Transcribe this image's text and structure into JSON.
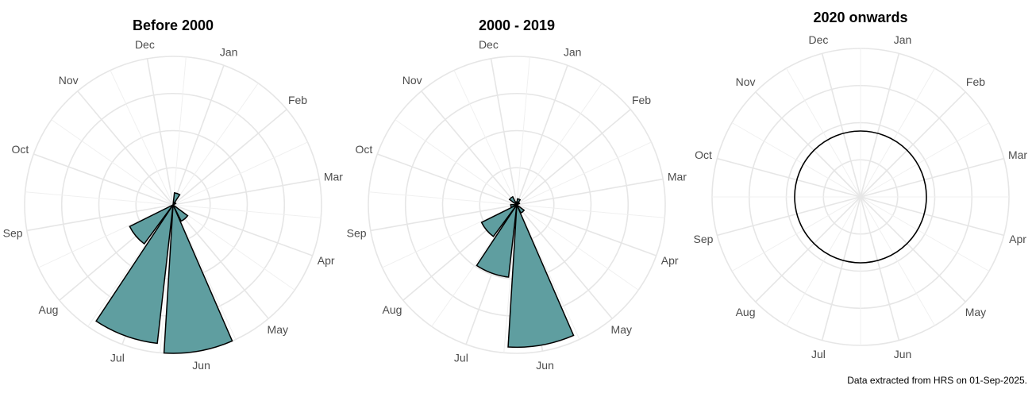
{
  "caption": "Data extracted from HRS on 01-Sep-2025.",
  "colors": {
    "bar_fill": "#5f9ea0",
    "bar_stroke": "#000000",
    "grid": "#e6e6e6",
    "label": "#4d4d4d"
  },
  "chart_data": [
    {
      "type": "bar",
      "polar": true,
      "title": "Before 2000",
      "categories": [
        "Jan",
        "Feb",
        "Mar",
        "Apr",
        "May",
        "Jun",
        "Jul",
        "Aug",
        "Sep",
        "Oct",
        "Nov",
        "Dec"
      ],
      "values": [
        0.4,
        0.1,
        0,
        0,
        0.6,
        4.9,
        4.6,
        1.6,
        0,
        0,
        0,
        0
      ],
      "ylim": [
        0,
        4.9
      ],
      "grid": true
    },
    {
      "type": "bar",
      "polar": true,
      "title": "2000 - 2019",
      "categories": [
        "Jan",
        "Feb",
        "Mar",
        "Apr",
        "May",
        "Jun",
        "Jul",
        "Aug",
        "Sep",
        "Oct",
        "Nov",
        "Dec"
      ],
      "values": [
        0.2,
        0.1,
        0,
        0,
        0.3,
        4.7,
        2.4,
        1.3,
        0.2,
        0,
        0.3,
        0.1
      ],
      "ylim": [
        0,
        4.9
      ],
      "grid": true
    },
    {
      "type": "bar",
      "polar": true,
      "title": "2020 onwards",
      "categories": [
        "Jan",
        "Feb",
        "Mar",
        "Apr",
        "May",
        "Jun",
        "Jul",
        "Aug",
        "Sep",
        "Oct",
        "Nov",
        "Dec"
      ],
      "values": [
        0,
        0,
        0,
        0,
        0,
        0,
        0,
        0,
        0,
        0,
        0,
        0
      ],
      "ylim": [
        0,
        1
      ],
      "grid": true
    }
  ]
}
